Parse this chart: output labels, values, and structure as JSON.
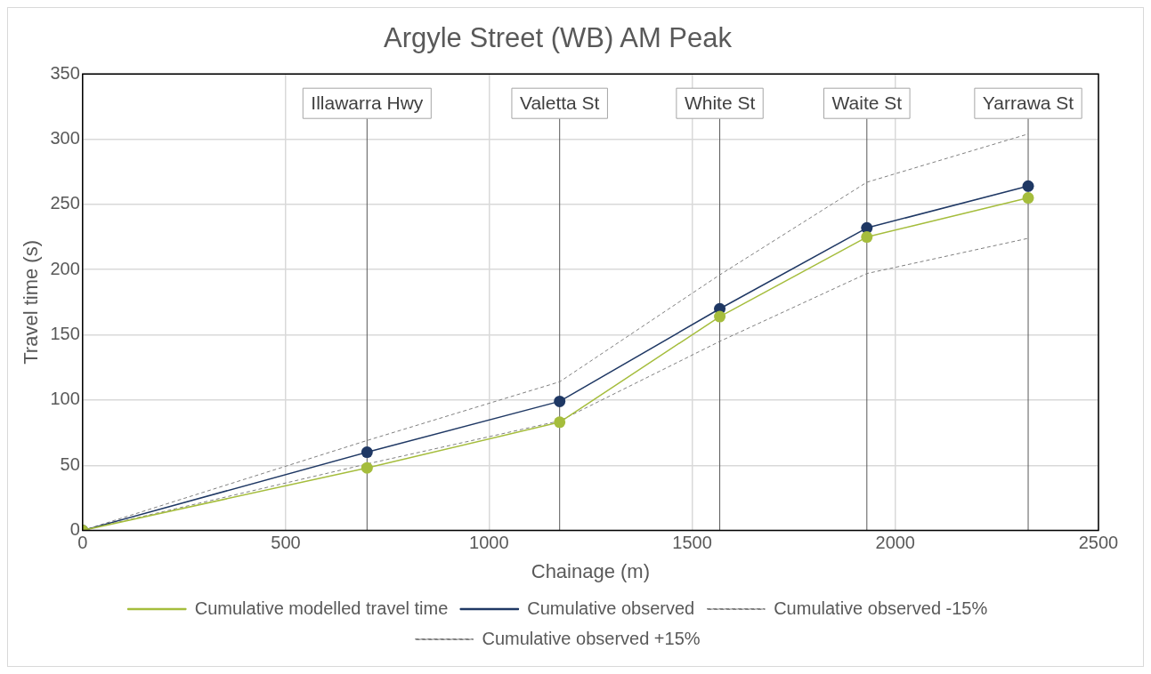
{
  "chart_data": {
    "type": "line",
    "title": "Argyle Street (WB) AM Peak",
    "xlabel": "Chainage (m)",
    "ylabel": "Travel time (s)",
    "xlim": [
      0,
      2500
    ],
    "xticks": [
      0,
      500,
      1000,
      1500,
      2000,
      2500
    ],
    "ylim": [
      0,
      350
    ],
    "yticks": [
      0,
      50,
      100,
      150,
      200,
      250,
      300,
      350
    ],
    "grid": true,
    "legend": "bottom",
    "series": [
      {
        "name": "Cumulative modelled travel time",
        "color": "#a5bd3c",
        "x": [
          0,
          700,
          1174,
          1568,
          1930,
          2327
        ],
        "values": [
          0,
          48,
          83,
          164,
          225,
          255
        ],
        "marker": "circle",
        "line_style": "solid"
      },
      {
        "name": "Cumulative observed",
        "color": "#1f3864",
        "x": [
          0,
          700,
          1174,
          1568,
          1930,
          2327
        ],
        "values": [
          0,
          60,
          99,
          170,
          232,
          264
        ],
        "marker": "circle",
        "line_style": "solid"
      },
      {
        "name": "Cumulative observed -15%",
        "color": "#808080",
        "x": [
          0,
          700,
          1174,
          1568,
          1930,
          2327
        ],
        "values": [
          0,
          51,
          84,
          145,
          197,
          224
        ],
        "marker": "none",
        "line_style": "dashed"
      },
      {
        "name": "Cumulative observed +15%",
        "color": "#808080",
        "x": [
          0,
          700,
          1174,
          1568,
          1930,
          2327
        ],
        "values": [
          0,
          69,
          114,
          196,
          267,
          304
        ],
        "marker": "none",
        "line_style": "dashed"
      }
    ],
    "ref_lines": [
      {
        "axis": "x",
        "value": 700,
        "label": "Illawarra Hwy",
        "color": "#595959"
      },
      {
        "axis": "x",
        "value": 1174,
        "label": "Valetta St",
        "color": "#595959"
      },
      {
        "axis": "x",
        "value": 1568,
        "label": "White St",
        "color": "#595959"
      },
      {
        "axis": "x",
        "value": 1930,
        "label": "Waite St",
        "color": "#595959"
      },
      {
        "axis": "x",
        "value": 2327,
        "label": "Yarrawa St",
        "color": "#595959"
      }
    ]
  }
}
